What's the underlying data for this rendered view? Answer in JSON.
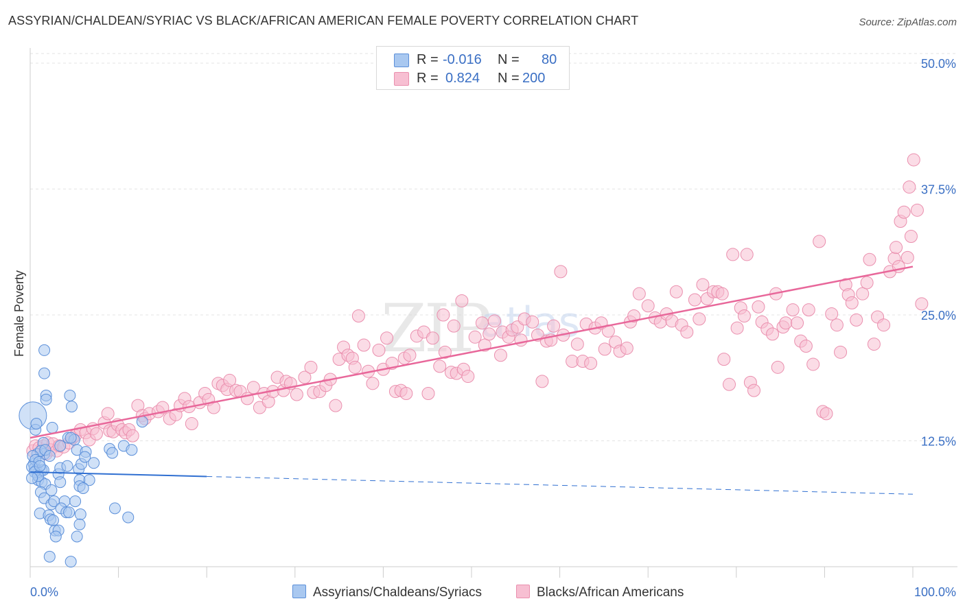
{
  "header": {
    "title": "ASSYRIAN/CHALDEAN/SYRIAC VS BLACK/AFRICAN AMERICAN FEMALE POVERTY CORRELATION CHART",
    "source": "Source: ZipAtlas.com"
  },
  "watermark": "ZIPatlas",
  "legend": {
    "rows": [
      {
        "r_label": "R =",
        "r_value": "-0.016",
        "n_label": "N =",
        "n_value": "80"
      },
      {
        "r_label": "R =",
        "r_value": "0.824",
        "n_label": "N =",
        "n_value": "200"
      }
    ]
  },
  "bottom_legend": {
    "series_a": "Assyrians/Chaldeans/Syriacs",
    "series_b": "Blacks/African Americans"
  },
  "colors": {
    "blue_fill": "#a9c8f0",
    "blue_stroke": "#5b8fd9",
    "blue_line": "#2f6fd1",
    "pink_fill": "#f7bfd2",
    "pink_stroke": "#ea8fae",
    "pink_line": "#e8679a",
    "axis_text": "#3a6fc4"
  },
  "chart_data": {
    "type": "scatter",
    "title": "ASSYRIAN/CHALDEAN/SYRIAC VS BLACK/AFRICAN AMERICAN FEMALE POVERTY CORRELATION CHART",
    "xlabel": "",
    "ylabel": "Female Poverty",
    "xlim": [
      0,
      100
    ],
    "ylim": [
      0,
      51.5
    ],
    "x_tick_labels": [
      "0.0%",
      "100.0%"
    ],
    "y_ticks": [
      12.5,
      25.0,
      37.5,
      50.0
    ],
    "y_tick_labels": [
      "12.5%",
      "25.0%",
      "37.5%",
      "50.0%"
    ],
    "grid": "horizontal dashed",
    "legend_position": "top-center",
    "series": [
      {
        "name": "Assyrians/Chaldeans/Syriacs",
        "R": -0.016,
        "N": 80,
        "trend": {
          "x0": 0,
          "y0": 9.4,
          "x1": 100,
          "y1": 7.2,
          "solid_until": 20
        },
        "points": [
          [
            0.3,
            15
          ],
          [
            1.6,
            21.5
          ],
          [
            1.6,
            19.2
          ],
          [
            1.8,
            17
          ],
          [
            1.8,
            16.6
          ],
          [
            4.5,
            17
          ],
          [
            4.7,
            15.9
          ],
          [
            0.6,
            13.6
          ],
          [
            0.7,
            14.2
          ],
          [
            2.5,
            13.8
          ],
          [
            4.3,
            12.8
          ],
          [
            5,
            12.6
          ],
          [
            1.5,
            12.3
          ],
          [
            1.6,
            11.2
          ],
          [
            0.8,
            11.2
          ],
          [
            1.2,
            11.5
          ],
          [
            1.7,
            11.6
          ],
          [
            5.3,
            11.6
          ],
          [
            6.3,
            11.4
          ],
          [
            9,
            11.7
          ],
          [
            9.3,
            11.3
          ],
          [
            10.6,
            12
          ],
          [
            11.5,
            11.6
          ],
          [
            0.4,
            10.2
          ],
          [
            0.5,
            9.8
          ],
          [
            0.7,
            9.6
          ],
          [
            0.8,
            9.2
          ],
          [
            1.3,
            9.6
          ],
          [
            1.5,
            9.6
          ],
          [
            3.2,
            9.2
          ],
          [
            3.4,
            9.8
          ],
          [
            4.2,
            10
          ],
          [
            5.5,
            9.7
          ],
          [
            5.8,
            10.2
          ],
          [
            7.2,
            10.3
          ],
          [
            0.9,
            8.6
          ],
          [
            1.3,
            8.4
          ],
          [
            1.7,
            8.2
          ],
          [
            3.4,
            8.4
          ],
          [
            5.6,
            8.6
          ],
          [
            6.7,
            8.6
          ],
          [
            5.6,
            8
          ],
          [
            6,
            7.8
          ],
          [
            1.2,
            7.4
          ],
          [
            2.4,
            7.6
          ],
          [
            1.6,
            6.8
          ],
          [
            2.4,
            6.2
          ],
          [
            2.7,
            6.5
          ],
          [
            3.9,
            6.5
          ],
          [
            5.1,
            6.5
          ],
          [
            3.5,
            5.8
          ],
          [
            4.1,
            5.4
          ],
          [
            4.4,
            5.4
          ],
          [
            5.7,
            5.2
          ],
          [
            1.1,
            5.3
          ],
          [
            2.1,
            5.1
          ],
          [
            2.3,
            4.7
          ],
          [
            2.6,
            4.6
          ],
          [
            9.6,
            5.8
          ],
          [
            11.1,
            4.9
          ],
          [
            5.6,
            4.2
          ],
          [
            2.8,
            3.6
          ],
          [
            3.2,
            3.6
          ],
          [
            2.9,
            3
          ],
          [
            5.3,
            3
          ],
          [
            2.2,
            1
          ],
          [
            4.6,
            0.5
          ],
          [
            12.7,
            14.4
          ],
          [
            0.3,
            11
          ],
          [
            0.6,
            10.6
          ],
          [
            1,
            10.4
          ],
          [
            0.2,
            9.9
          ],
          [
            0.5,
            9.4
          ],
          [
            0.9,
            9
          ],
          [
            0.2,
            8.8
          ],
          [
            1.1,
            10
          ],
          [
            2.2,
            11
          ],
          [
            3.4,
            12
          ],
          [
            4.6,
            12.8
          ],
          [
            6.2,
            10.9
          ]
        ]
      },
      {
        "name": "Blacks/African Americans",
        "R": 0.824,
        "N": 200,
        "trend": {
          "x0": 0,
          "y0": 12.8,
          "x1": 100,
          "y1": 29.8
        },
        "points": [
          [
            0.3,
            11.5
          ],
          [
            0.6,
            12
          ],
          [
            1,
            11.8
          ],
          [
            1.5,
            12
          ],
          [
            1.8,
            11.2
          ],
          [
            2,
            12.3
          ],
          [
            2.3,
            11.6
          ],
          [
            2.6,
            12.2
          ],
          [
            3,
            11.5
          ],
          [
            3.3,
            12
          ],
          [
            3.8,
            11.9
          ],
          [
            4.4,
            12.3
          ],
          [
            4.8,
            12.8
          ],
          [
            5.1,
            13
          ],
          [
            5.7,
            13.6
          ],
          [
            6.3,
            13.3
          ],
          [
            6.7,
            12.6
          ],
          [
            7.1,
            13.7
          ],
          [
            7.5,
            13.2
          ],
          [
            8.4,
            14.3
          ],
          [
            9,
            13.5
          ],
          [
            9.4,
            13.4
          ],
          [
            9.9,
            14.1
          ],
          [
            10.4,
            13.6
          ],
          [
            10.8,
            13.3
          ],
          [
            11.2,
            13.6
          ],
          [
            11.6,
            13
          ],
          [
            8.8,
            15.2
          ],
          [
            12.2,
            16
          ],
          [
            12.7,
            15
          ],
          [
            13,
            14.7
          ],
          [
            13.5,
            15.2
          ],
          [
            14.5,
            15.4
          ],
          [
            15,
            15.8
          ],
          [
            15.8,
            14.7
          ],
          [
            16.5,
            15.1
          ],
          [
            17,
            16
          ],
          [
            17.5,
            16.7
          ],
          [
            18,
            15.9
          ],
          [
            18.3,
            14.2
          ],
          [
            19.2,
            16.3
          ],
          [
            19.8,
            17.2
          ],
          [
            20.2,
            16.6
          ],
          [
            20.8,
            15.8
          ],
          [
            21.3,
            18.2
          ],
          [
            21.8,
            18
          ],
          [
            22.3,
            17.6
          ],
          [
            22.6,
            18.5
          ],
          [
            23.3,
            17.5
          ],
          [
            23.8,
            17.4
          ],
          [
            24.6,
            16.7
          ],
          [
            25.3,
            17.8
          ],
          [
            26,
            15.8
          ],
          [
            26.5,
            17.2
          ],
          [
            27,
            16.4
          ],
          [
            27.5,
            17.4
          ],
          [
            28,
            18.8
          ],
          [
            28.7,
            17.5
          ],
          [
            29,
            18.4
          ],
          [
            29.5,
            18.2
          ],
          [
            30.2,
            17.1
          ],
          [
            31.1,
            18.8
          ],
          [
            31.8,
            19.8
          ],
          [
            32.1,
            17.3
          ],
          [
            32.8,
            17.4
          ],
          [
            33.5,
            18
          ],
          [
            34,
            18.6
          ],
          [
            34.6,
            16
          ],
          [
            35,
            20.6
          ],
          [
            35.5,
            21.8
          ],
          [
            36,
            21
          ],
          [
            36.5,
            20.7
          ],
          [
            36.8,
            19.8
          ],
          [
            37.2,
            24.9
          ],
          [
            37.8,
            22
          ],
          [
            38.3,
            19.4
          ],
          [
            38.8,
            18.2
          ],
          [
            39.5,
            21.5
          ],
          [
            40.4,
            22.7
          ],
          [
            40,
            19.6
          ],
          [
            41,
            20.2
          ],
          [
            41.4,
            17.4
          ],
          [
            42,
            17.5
          ],
          [
            42.4,
            20.7
          ],
          [
            42.6,
            17.2
          ],
          [
            43,
            21
          ],
          [
            43.8,
            22.9
          ],
          [
            44.6,
            23.3
          ],
          [
            45.1,
            17.2
          ],
          [
            45.6,
            22.7
          ],
          [
            46.4,
            19.9
          ],
          [
            46.8,
            25
          ],
          [
            47,
            21.3
          ],
          [
            47.7,
            19.3
          ],
          [
            48,
            23.9
          ],
          [
            48.3,
            19.2
          ],
          [
            48.9,
            26.4
          ],
          [
            49.1,
            19.6
          ],
          [
            49.6,
            18.9
          ],
          [
            50.4,
            22.8
          ],
          [
            51.2,
            24.2
          ],
          [
            51.5,
            22
          ],
          [
            52,
            23.1
          ],
          [
            52.6,
            24.4
          ],
          [
            53.3,
            21
          ],
          [
            53.5,
            23.3
          ],
          [
            54.2,
            22.8
          ],
          [
            54.6,
            23.5
          ],
          [
            55.2,
            23.8
          ],
          [
            55.6,
            22.5
          ],
          [
            56,
            24.6
          ],
          [
            56.9,
            24.3
          ],
          [
            57.5,
            23
          ],
          [
            58,
            18.4
          ],
          [
            58.5,
            22.4
          ],
          [
            59,
            22.5
          ],
          [
            60.1,
            29.3
          ],
          [
            59.3,
            23.9
          ],
          [
            60.4,
            23
          ],
          [
            61.4,
            20.4
          ],
          [
            62,
            22.1
          ],
          [
            62.6,
            20.4
          ],
          [
            63,
            24.1
          ],
          [
            63.5,
            20.2
          ],
          [
            64,
            23.7
          ],
          [
            64.7,
            24.2
          ],
          [
            65.1,
            21.6
          ],
          [
            65.5,
            23.4
          ],
          [
            66.3,
            22.3
          ],
          [
            66.8,
            21.4
          ],
          [
            67.6,
            21.7
          ],
          [
            68,
            24.3
          ],
          [
            68.4,
            24.9
          ],
          [
            69,
            27.1
          ],
          [
            70,
            25.9
          ],
          [
            70.8,
            24.7
          ],
          [
            71.4,
            24.3
          ],
          [
            72.1,
            25.1
          ],
          [
            72.7,
            24.4
          ],
          [
            73.2,
            27.3
          ],
          [
            73.8,
            24
          ],
          [
            74.4,
            23.3
          ],
          [
            75.3,
            26.5
          ],
          [
            75.8,
            24.6
          ],
          [
            76.2,
            28
          ],
          [
            76.7,
            26.6
          ],
          [
            77.4,
            27.3
          ],
          [
            77.9,
            27.3
          ],
          [
            78.4,
            27.1
          ],
          [
            78.6,
            20.6
          ],
          [
            79.2,
            18.1
          ],
          [
            79.6,
            31
          ],
          [
            80.1,
            23.7
          ],
          [
            80.5,
            25.7
          ],
          [
            80.9,
            24.9
          ],
          [
            81.2,
            31
          ],
          [
            81.6,
            18.3
          ],
          [
            82,
            17.5
          ],
          [
            82.5,
            25.8
          ],
          [
            82.9,
            24.3
          ],
          [
            83.5,
            23.6
          ],
          [
            84.1,
            23.1
          ],
          [
            84.5,
            27.1
          ],
          [
            84.7,
            19.8
          ],
          [
            85.3,
            23.8
          ],
          [
            85.6,
            24.2
          ],
          [
            86.4,
            25.5
          ],
          [
            86.9,
            24.2
          ],
          [
            87.3,
            22.4
          ],
          [
            87.9,
            21.9
          ],
          [
            88.2,
            25.5
          ],
          [
            88.7,
            20.1
          ],
          [
            89.4,
            32.3
          ],
          [
            89.8,
            15.4
          ],
          [
            90.2,
            15.2
          ],
          [
            90.8,
            25.1
          ],
          [
            91.4,
            24
          ],
          [
            91.8,
            21.3
          ],
          [
            92.4,
            28
          ],
          [
            92.7,
            27
          ],
          [
            93.1,
            26.2
          ],
          [
            93.6,
            24.5
          ],
          [
            94.3,
            27.1
          ],
          [
            94.8,
            28.2
          ],
          [
            95.1,
            30.5
          ],
          [
            95.6,
            22.1
          ],
          [
            96,
            24.8
          ],
          [
            96.7,
            24
          ],
          [
            97.4,
            29.3
          ],
          [
            97.9,
            30.6
          ],
          [
            98.4,
            29.8
          ],
          [
            99.4,
            30.7
          ],
          [
            99.8,
            32.8
          ],
          [
            100.5,
            35.4
          ],
          [
            101,
            26.1
          ],
          [
            98.1,
            31.7
          ],
          [
            98.6,
            34.3
          ],
          [
            99,
            35.2
          ],
          [
            99.6,
            37.7
          ],
          [
            100.1,
            40.4
          ]
        ]
      }
    ]
  }
}
